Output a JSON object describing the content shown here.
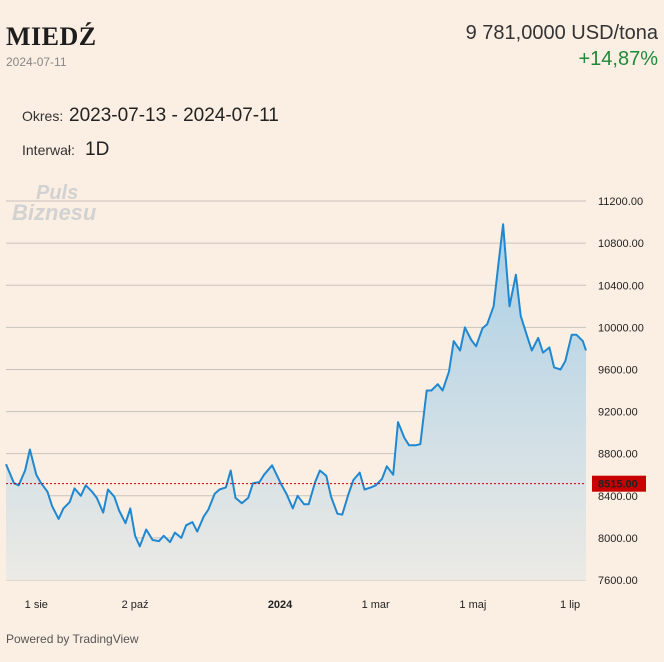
{
  "header": {
    "title": "MIEDŹ",
    "date": "2024-07-11",
    "price": "9 781,0000 USD/tona",
    "change": "+14,87%"
  },
  "meta": {
    "period_label": "Okres:",
    "period_value": "2023-07-13 - 2024-07-11",
    "interval_label": "Interwał:",
    "interval_value": "1D"
  },
  "watermark": {
    "line1": "Puls",
    "line2": "Biznesu"
  },
  "footer": {
    "text": "Powered by TradingView"
  },
  "colors": {
    "line": "#1f88d1",
    "fill_top": "#a9cfe6",
    "fill_bottom": "#eceae5",
    "ref_line": "#c80000",
    "ref_label_bg": "#c80000",
    "up": "#1f8a3a"
  },
  "chart_data": {
    "type": "area",
    "title": "MIEDŹ",
    "xlabel": "",
    "ylabel": "",
    "x_range": [
      "2023-07-13",
      "2024-07-11"
    ],
    "ylim": [
      7600,
      11400
    ],
    "y_ticks": [
      "11200.00",
      "10800.00",
      "10400.00",
      "10000.00",
      "9600.00",
      "9200.00",
      "8800.00",
      "8400.00",
      "8000.00",
      "7600.00"
    ],
    "x_ticks": [
      {
        "label": "1 sie",
        "date": "2023-08-01"
      },
      {
        "label": "2 paź",
        "date": "2023-10-02"
      },
      {
        "label": "2024",
        "date": "2024-01-01"
      },
      {
        "label": "1 mar",
        "date": "2024-03-01"
      },
      {
        "label": "1 maj",
        "date": "2024-05-01"
      },
      {
        "label": "1 lip",
        "date": "2024-07-01"
      }
    ],
    "reference_line": {
      "value": 8515.0,
      "label": "8515.00"
    },
    "grid": true,
    "series": [
      {
        "points": [
          [
            "2023-07-13",
            8700
          ],
          [
            "2023-07-18",
            8520
          ],
          [
            "2023-07-21",
            8500
          ],
          [
            "2023-07-25",
            8640
          ],
          [
            "2023-07-28",
            8840
          ],
          [
            "2023-08-01",
            8600
          ],
          [
            "2023-08-04",
            8520
          ],
          [
            "2023-08-08",
            8440
          ],
          [
            "2023-08-11",
            8300
          ],
          [
            "2023-08-15",
            8180
          ],
          [
            "2023-08-18",
            8280
          ],
          [
            "2023-08-22",
            8340
          ],
          [
            "2023-08-25",
            8470
          ],
          [
            "2023-08-29",
            8400
          ],
          [
            "2023-09-01",
            8500
          ],
          [
            "2023-09-05",
            8440
          ],
          [
            "2023-09-08",
            8380
          ],
          [
            "2023-09-12",
            8240
          ],
          [
            "2023-09-15",
            8460
          ],
          [
            "2023-09-19",
            8390
          ],
          [
            "2023-09-22",
            8260
          ],
          [
            "2023-09-26",
            8140
          ],
          [
            "2023-09-29",
            8280
          ],
          [
            "2023-10-02",
            8020
          ],
          [
            "2023-10-05",
            7920
          ],
          [
            "2023-10-09",
            8080
          ],
          [
            "2023-10-13",
            7980
          ],
          [
            "2023-10-17",
            7970
          ],
          [
            "2023-10-20",
            8020
          ],
          [
            "2023-10-24",
            7960
          ],
          [
            "2023-10-27",
            8050
          ],
          [
            "2023-10-31",
            8000
          ],
          [
            "2023-11-03",
            8120
          ],
          [
            "2023-11-07",
            8150
          ],
          [
            "2023-11-10",
            8060
          ],
          [
            "2023-11-14",
            8200
          ],
          [
            "2023-11-17",
            8270
          ],
          [
            "2023-11-21",
            8420
          ],
          [
            "2023-11-24",
            8460
          ],
          [
            "2023-11-28",
            8480
          ],
          [
            "2023-12-01",
            8640
          ],
          [
            "2023-12-04",
            8380
          ],
          [
            "2023-12-08",
            8330
          ],
          [
            "2023-12-12",
            8380
          ],
          [
            "2023-12-15",
            8520
          ],
          [
            "2023-12-19",
            8530
          ],
          [
            "2023-12-22",
            8600
          ],
          [
            "2023-12-27",
            8690
          ],
          [
            "2024-01-02",
            8500
          ],
          [
            "2024-01-05",
            8420
          ],
          [
            "2024-01-09",
            8280
          ],
          [
            "2024-01-12",
            8400
          ],
          [
            "2024-01-16",
            8320
          ],
          [
            "2024-01-19",
            8320
          ],
          [
            "2024-01-23",
            8530
          ],
          [
            "2024-01-26",
            8640
          ],
          [
            "2024-01-30",
            8590
          ],
          [
            "2024-02-02",
            8390
          ],
          [
            "2024-02-06",
            8230
          ],
          [
            "2024-02-09",
            8220
          ],
          [
            "2024-02-13",
            8420
          ],
          [
            "2024-02-16",
            8550
          ],
          [
            "2024-02-20",
            8620
          ],
          [
            "2024-02-23",
            8460
          ],
          [
            "2024-02-27",
            8480
          ],
          [
            "2024-03-01",
            8500
          ],
          [
            "2024-03-05",
            8560
          ],
          [
            "2024-03-08",
            8680
          ],
          [
            "2024-03-12",
            8600
          ],
          [
            "2024-03-15",
            9100
          ],
          [
            "2024-03-19",
            8950
          ],
          [
            "2024-03-22",
            8880
          ],
          [
            "2024-03-26",
            8880
          ],
          [
            "2024-03-29",
            8890
          ],
          [
            "2024-04-02",
            9400
          ],
          [
            "2024-04-05",
            9400
          ],
          [
            "2024-04-09",
            9460
          ],
          [
            "2024-04-12",
            9400
          ],
          [
            "2024-04-16",
            9580
          ],
          [
            "2024-04-19",
            9870
          ],
          [
            "2024-04-23",
            9780
          ],
          [
            "2024-04-26",
            10000
          ],
          [
            "2024-04-30",
            9880
          ],
          [
            "2024-05-03",
            9820
          ],
          [
            "2024-05-07",
            9990
          ],
          [
            "2024-05-10",
            10030
          ],
          [
            "2024-05-14",
            10200
          ],
          [
            "2024-05-17",
            10600
          ],
          [
            "2024-05-20",
            10980
          ],
          [
            "2024-05-24",
            10200
          ],
          [
            "2024-05-28",
            10500
          ],
          [
            "2024-05-31",
            10110
          ],
          [
            "2024-06-04",
            9920
          ],
          [
            "2024-06-07",
            9780
          ],
          [
            "2024-06-11",
            9900
          ],
          [
            "2024-06-14",
            9760
          ],
          [
            "2024-06-18",
            9810
          ],
          [
            "2024-06-21",
            9620
          ],
          [
            "2024-06-25",
            9600
          ],
          [
            "2024-06-28",
            9680
          ],
          [
            "2024-07-02",
            9930
          ],
          [
            "2024-07-05",
            9930
          ],
          [
            "2024-07-09",
            9870
          ],
          [
            "2024-07-11",
            9781
          ]
        ]
      }
    ]
  }
}
